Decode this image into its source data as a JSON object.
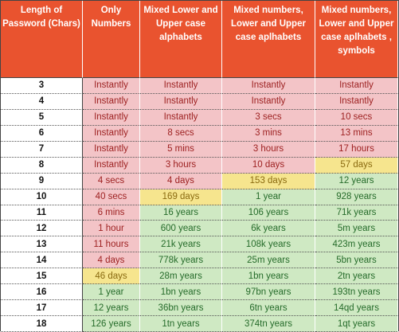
{
  "headers": [
    "Length of\nPassword (Chars)",
    "Only\nNumbers",
    "Mixed Lower and\nUpper case\nalphabets",
    "Mixed numbers,\nLower and Upper\ncase aplhabets",
    "Mixed numbers,\nLower and Upper\ncase aplhabets ,\nsymbols"
  ],
  "colors": {
    "header": "#e9532f",
    "red": "#f3c4c7",
    "yellow": "#f6e58e",
    "green": "#cfe9c3"
  },
  "rows": [
    {
      "length": "3",
      "cells": [
        {
          "text": "Instantly",
          "level": "red"
        },
        {
          "text": "Instantly",
          "level": "red"
        },
        {
          "text": "Instantly",
          "level": "red"
        },
        {
          "text": "Instantly",
          "level": "red"
        }
      ]
    },
    {
      "length": "4",
      "cells": [
        {
          "text": "Instantly",
          "level": "red"
        },
        {
          "text": "Instantly",
          "level": "red"
        },
        {
          "text": "Instantly",
          "level": "red"
        },
        {
          "text": "Instantly",
          "level": "red"
        }
      ]
    },
    {
      "length": "5",
      "cells": [
        {
          "text": "Instantly",
          "level": "red"
        },
        {
          "text": "Instantly",
          "level": "red"
        },
        {
          "text": "3 secs",
          "level": "red"
        },
        {
          "text": "10 secs",
          "level": "red"
        }
      ]
    },
    {
      "length": "6",
      "cells": [
        {
          "text": "Instantly",
          "level": "red"
        },
        {
          "text": "8 secs",
          "level": "red"
        },
        {
          "text": "3 mins",
          "level": "red"
        },
        {
          "text": "13 mins",
          "level": "red"
        }
      ]
    },
    {
      "length": "7",
      "cells": [
        {
          "text": "Instantly",
          "level": "red"
        },
        {
          "text": "5 mins",
          "level": "red"
        },
        {
          "text": "3 hours",
          "level": "red"
        },
        {
          "text": "17 hours",
          "level": "red"
        }
      ]
    },
    {
      "length": "8",
      "cells": [
        {
          "text": "Instantly",
          "level": "red"
        },
        {
          "text": "3 hours",
          "level": "red"
        },
        {
          "text": "10 days",
          "level": "red"
        },
        {
          "text": "57 days",
          "level": "yellow"
        }
      ]
    },
    {
      "length": "9",
      "cells": [
        {
          "text": "4 secs",
          "level": "red"
        },
        {
          "text": "4 days",
          "level": "red"
        },
        {
          "text": "153 days",
          "level": "yellow"
        },
        {
          "text": "12 years",
          "level": "green"
        }
      ]
    },
    {
      "length": "10",
      "cells": [
        {
          "text": "40 secs",
          "level": "red"
        },
        {
          "text": "169 days",
          "level": "yellow"
        },
        {
          "text": "1 year",
          "level": "green"
        },
        {
          "text": "928 years",
          "level": "green"
        }
      ]
    },
    {
      "length": "11",
      "cells": [
        {
          "text": "6 mins",
          "level": "red"
        },
        {
          "text": "16 years",
          "level": "green"
        },
        {
          "text": "106 years",
          "level": "green"
        },
        {
          "text": "71k years",
          "level": "green"
        }
      ]
    },
    {
      "length": "12",
      "cells": [
        {
          "text": "1 hour",
          "level": "red"
        },
        {
          "text": "600 years",
          "level": "green"
        },
        {
          "text": "6k years",
          "level": "green"
        },
        {
          "text": "5m years",
          "level": "green"
        }
      ]
    },
    {
      "length": "13",
      "cells": [
        {
          "text": "11 hours",
          "level": "red"
        },
        {
          "text": "21k years",
          "level": "green"
        },
        {
          "text": "108k years",
          "level": "green"
        },
        {
          "text": "423m years",
          "level": "green"
        }
      ]
    },
    {
      "length": "14",
      "cells": [
        {
          "text": "4 days",
          "level": "red"
        },
        {
          "text": "778k years",
          "level": "green"
        },
        {
          "text": "25m years",
          "level": "green"
        },
        {
          "text": "5bn years",
          "level": "green"
        }
      ]
    },
    {
      "length": "15",
      "cells": [
        {
          "text": "46 days",
          "level": "yellow"
        },
        {
          "text": "28m years",
          "level": "green"
        },
        {
          "text": "1bn years",
          "level": "green"
        },
        {
          "text": "2tn years",
          "level": "green"
        }
      ]
    },
    {
      "length": "16",
      "cells": [
        {
          "text": "1 year",
          "level": "green"
        },
        {
          "text": "1bn years",
          "level": "green"
        },
        {
          "text": "97bn years",
          "level": "green"
        },
        {
          "text": "193tn years",
          "level": "green"
        }
      ]
    },
    {
      "length": "17",
      "cells": [
        {
          "text": "12 years",
          "level": "green"
        },
        {
          "text": "36bn years",
          "level": "green"
        },
        {
          "text": "6tn years",
          "level": "green"
        },
        {
          "text": "14qd years",
          "level": "green"
        }
      ]
    },
    {
      "length": "18",
      "cells": [
        {
          "text": "126 years",
          "level": "green"
        },
        {
          "text": "1tn years",
          "level": "green"
        },
        {
          "text": "374tn years",
          "level": "green"
        },
        {
          "text": "1qt years",
          "level": "green"
        }
      ]
    }
  ]
}
